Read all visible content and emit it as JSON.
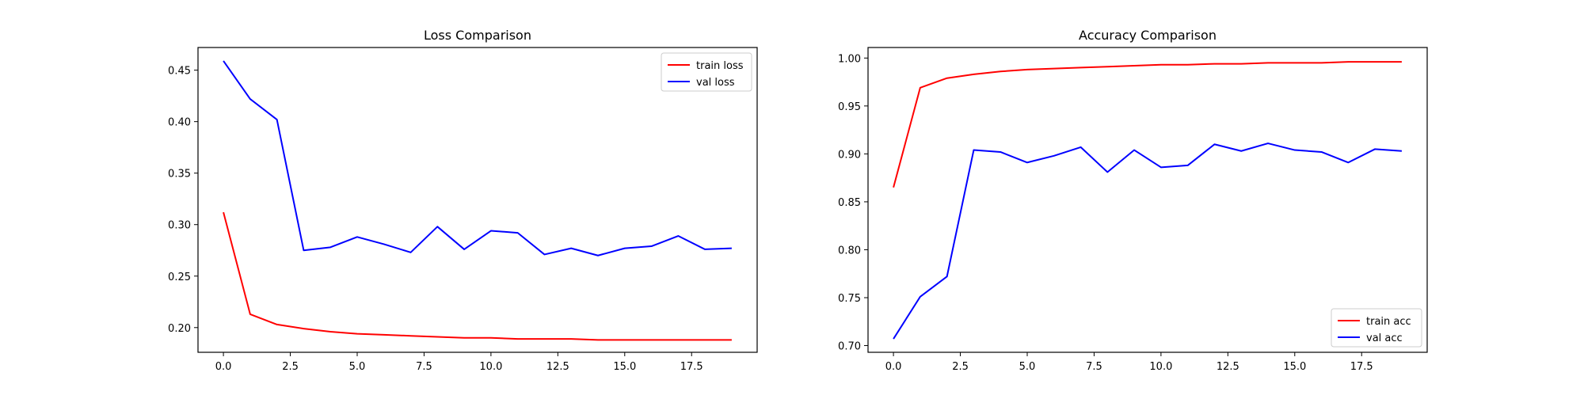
{
  "chart_data": [
    {
      "type": "line",
      "title": "Loss Comparison",
      "xlabel": "",
      "ylabel": "",
      "x": [
        0,
        1,
        2,
        3,
        4,
        5,
        6,
        7,
        8,
        9,
        10,
        11,
        12,
        13,
        14,
        15,
        16,
        17,
        18,
        19
      ],
      "xlim": [
        -0.95,
        19.95
      ],
      "ylim": [
        0.176,
        0.472
      ],
      "xticks": [
        0.0,
        2.5,
        5.0,
        7.5,
        10.0,
        12.5,
        15.0,
        17.5
      ],
      "yticks": [
        0.2,
        0.25,
        0.3,
        0.35,
        0.4,
        0.45
      ],
      "series": [
        {
          "name": "train loss",
          "color": "#ff0000",
          "values": [
            0.312,
            0.213,
            0.203,
            0.199,
            0.196,
            0.194,
            0.193,
            0.192,
            0.191,
            0.19,
            0.19,
            0.189,
            0.189,
            0.189,
            0.188,
            0.188,
            0.188,
            0.188,
            0.188,
            0.188
          ]
        },
        {
          "name": "val loss",
          "color": "#0000ff",
          "values": [
            0.459,
            0.422,
            0.402,
            0.275,
            0.278,
            0.288,
            0.281,
            0.273,
            0.298,
            0.276,
            0.294,
            0.292,
            0.271,
            0.277,
            0.27,
            0.277,
            0.279,
            0.289,
            0.276,
            0.277
          ]
        }
      ],
      "legend": "upper right",
      "grid": false
    },
    {
      "type": "line",
      "title": "Accuracy Comparison",
      "xlabel": "",
      "ylabel": "",
      "x": [
        0,
        1,
        2,
        3,
        4,
        5,
        6,
        7,
        8,
        9,
        10,
        11,
        12,
        13,
        14,
        15,
        16,
        17,
        18,
        19
      ],
      "xlim": [
        -0.95,
        19.95
      ],
      "ylim": [
        0.693,
        1.011
      ],
      "xticks": [
        0.0,
        2.5,
        5.0,
        7.5,
        10.0,
        12.5,
        15.0,
        17.5
      ],
      "yticks": [
        0.7,
        0.75,
        0.8,
        0.85,
        0.9,
        0.95,
        1.0
      ],
      "series": [
        {
          "name": "train acc",
          "color": "#ff0000",
          "values": [
            0.865,
            0.969,
            0.979,
            0.983,
            0.986,
            0.988,
            0.989,
            0.99,
            0.991,
            0.992,
            0.993,
            0.993,
            0.994,
            0.994,
            0.995,
            0.995,
            0.995,
            0.996,
            0.996,
            0.996
          ]
        },
        {
          "name": "val acc",
          "color": "#0000ff",
          "values": [
            0.707,
            0.751,
            0.772,
            0.904,
            0.902,
            0.891,
            0.898,
            0.907,
            0.881,
            0.904,
            0.886,
            0.888,
            0.91,
            0.903,
            0.911,
            0.904,
            0.902,
            0.891,
            0.905,
            0.903
          ]
        }
      ],
      "legend": "lower right",
      "grid": false
    }
  ]
}
